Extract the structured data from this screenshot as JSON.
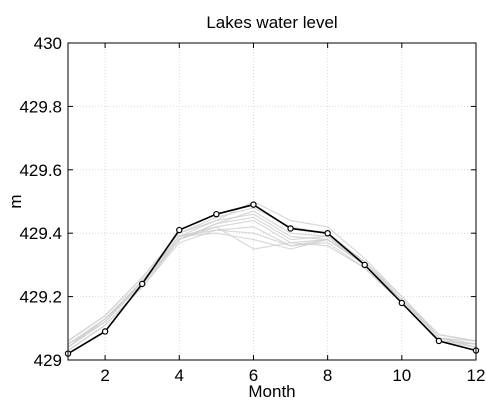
{
  "chart_data": {
    "type": "line",
    "title": "Lakes water level",
    "xlabel": "Month",
    "ylabel": "m",
    "xlim": [
      1,
      12
    ],
    "ylim": [
      429,
      430
    ],
    "xticks": [
      2,
      4,
      6,
      8,
      10,
      12
    ],
    "yticks": [
      429,
      429.2,
      429.4,
      429.6,
      429.8,
      430
    ],
    "ytick_labels": [
      "429",
      "429.2",
      "429.4",
      "429.6",
      "429.8",
      "430"
    ],
    "grid": true,
    "x": [
      1,
      2,
      3,
      4,
      5,
      6,
      7,
      8,
      9,
      10,
      11,
      12
    ],
    "highlight_series": {
      "values": [
        429.02,
        429.09,
        429.24,
        429.41,
        429.46,
        429.49,
        429.415,
        429.4,
        429.3,
        429.18,
        429.06,
        429.03
      ],
      "color": "#000000",
      "markers": true
    },
    "background_series": [
      {
        "values": [
          429.05,
          429.13,
          429.25,
          429.39,
          429.42,
          429.44,
          429.37,
          429.38,
          429.3,
          429.19,
          429.07,
          429.05
        ]
      },
      {
        "values": [
          429.04,
          429.12,
          429.24,
          429.38,
          429.43,
          429.47,
          429.4,
          429.39,
          429.31,
          429.19,
          429.08,
          429.06
        ]
      },
      {
        "values": [
          429.06,
          429.14,
          429.26,
          429.4,
          429.44,
          429.5,
          429.44,
          429.42,
          429.32,
          429.2,
          429.07,
          429.04
        ]
      },
      {
        "values": [
          429.03,
          429.11,
          429.23,
          429.37,
          429.41,
          429.42,
          429.36,
          429.37,
          429.29,
          429.18,
          429.06,
          429.05
        ]
      },
      {
        "values": [
          429.05,
          429.12,
          429.25,
          429.39,
          429.4,
          429.38,
          429.35,
          429.38,
          429.3,
          429.19,
          429.07,
          429.06
        ]
      },
      {
        "values": [
          429.04,
          429.13,
          429.24,
          429.38,
          429.42,
          429.35,
          429.37,
          429.36,
          429.29,
          429.18,
          429.06,
          429.04
        ]
      },
      {
        "values": [
          429.06,
          429.14,
          429.26,
          429.4,
          429.45,
          429.48,
          429.42,
          429.4,
          429.31,
          429.2,
          429.08,
          429.06
        ]
      },
      {
        "values": [
          429.03,
          429.11,
          429.23,
          429.38,
          429.43,
          429.45,
          429.38,
          429.39,
          429.3,
          429.19,
          429.07,
          429.05
        ]
      },
      {
        "values": [
          429.05,
          429.12,
          429.25,
          429.39,
          429.41,
          429.4,
          429.36,
          429.38,
          429.3,
          429.18,
          429.06,
          429.05
        ]
      },
      {
        "values": [
          429.04,
          429.13,
          429.24,
          429.39,
          429.44,
          429.46,
          429.39,
          429.38,
          429.31,
          429.19,
          429.07,
          429.04
        ]
      }
    ],
    "background_color": "#cfcfcf"
  }
}
